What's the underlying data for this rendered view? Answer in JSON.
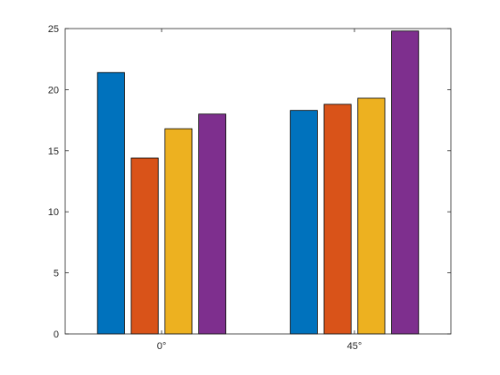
{
  "chart_data": {
    "type": "bar",
    "categories": [
      "0°",
      "45°"
    ],
    "series": [
      {
        "values": [
          21.4,
          18.3
        ]
      },
      {
        "values": [
          14.4,
          18.8
        ]
      },
      {
        "values": [
          16.8,
          19.3
        ]
      },
      {
        "values": [
          18.0,
          24.8
        ]
      }
    ],
    "colors": [
      "#0072bd",
      "#d95319",
      "#edb120",
      "#7e2f8e"
    ],
    "bar_edge_color": "#000000",
    "ylim": [
      0,
      25
    ],
    "yticks": [
      0,
      5,
      10,
      15,
      20,
      25
    ],
    "ytick_labels": [
      "0",
      "5",
      "10",
      "15",
      "20",
      "25"
    ],
    "xtick_labels": [
      "0°",
      "45°"
    ],
    "title": "",
    "xlabel": "",
    "ylabel": "",
    "grid": false,
    "legend": false,
    "box": true
  }
}
